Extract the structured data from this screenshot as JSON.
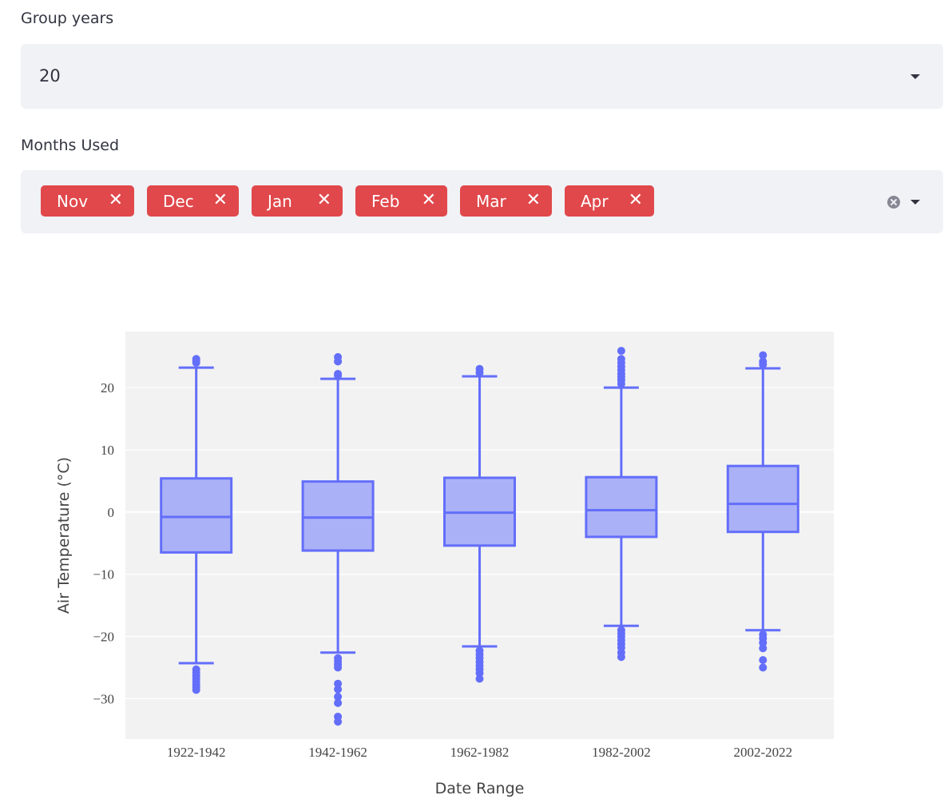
{
  "group_years": {
    "label": "Group years",
    "value": "20"
  },
  "months_used": {
    "label": "Months Used",
    "tags": [
      "Nov",
      "Dec",
      "Jan",
      "Feb",
      "Mar",
      "Apr"
    ],
    "remove_glyph": "✕"
  },
  "colors": {
    "tag_bg": "#e0484b",
    "box_stroke": "#636efa",
    "box_fill": "#abb1f6",
    "plot_bg": "#f2f2f2"
  },
  "chart_data": {
    "type": "box",
    "xlabel": "Date Range",
    "ylabel": "Air Temperature (°C)",
    "ylim": [
      -36.5,
      29
    ],
    "yticks": [
      -30,
      -20,
      -10,
      0,
      10,
      20
    ],
    "grid": true,
    "categories": [
      "1922-1942",
      "1942-1962",
      "1962-1982",
      "1982-2002",
      "2002-2022"
    ],
    "boxes": [
      {
        "category": "1922-1942",
        "whisker_low": -24.3,
        "q1": -6.5,
        "median": -0.8,
        "q3": 5.4,
        "whisker_high": 23.2,
        "outliers": [
          24.0,
          24.3,
          24.6,
          -25.3,
          -25.8,
          -26.3,
          -26.8,
          -27.3,
          -27.8,
          -28.2,
          -28.6
        ]
      },
      {
        "category": "1942-1962",
        "whisker_low": -22.6,
        "q1": -6.2,
        "median": -0.9,
        "q3": 4.9,
        "whisker_high": 21.4,
        "outliers": [
          21.9,
          22.2,
          24.2,
          24.9,
          -23.5,
          -24.0,
          -24.5,
          -25.0,
          -27.6,
          -28.5,
          -29.7,
          -30.7,
          -32.9,
          -33.7
        ]
      },
      {
        "category": "1962-1982",
        "whisker_low": -21.6,
        "q1": -5.4,
        "median": -0.1,
        "q3": 5.5,
        "whisker_high": 21.8,
        "outliers": [
          22.4,
          23.0,
          -22.3,
          -22.9,
          -23.5,
          -24.1,
          -24.7,
          -25.3,
          -25.9,
          -26.8
        ]
      },
      {
        "category": "1982-2002",
        "whisker_low": -18.3,
        "q1": -4.0,
        "median": 0.3,
        "q3": 5.6,
        "whisker_high": 20.0,
        "outliers": [
          20.6,
          21.2,
          21.7,
          22.2,
          22.8,
          23.4,
          24.0,
          24.6,
          25.9,
          -19.0,
          -19.5,
          -20.0,
          -20.6,
          -21.2,
          -21.8,
          -22.6,
          -23.3
        ]
      },
      {
        "category": "2002-2022",
        "whisker_low": -19.0,
        "q1": -3.2,
        "median": 1.3,
        "q3": 7.4,
        "whisker_high": 23.1,
        "outliers": [
          23.7,
          24.2,
          25.2,
          -19.7,
          -20.3,
          -21.0,
          -21.9,
          -23.8,
          -25.0
        ]
      }
    ]
  }
}
